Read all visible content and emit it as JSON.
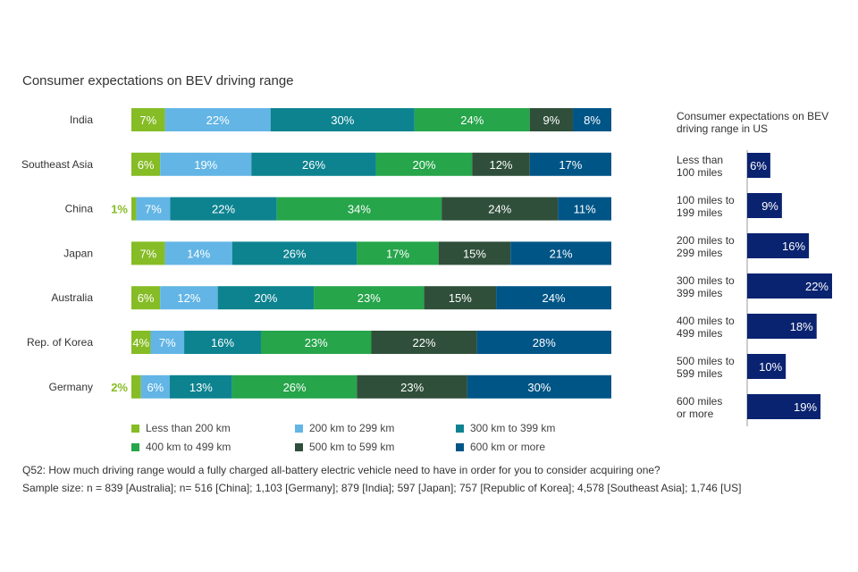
{
  "chart_data": [
    {
      "type": "bar",
      "orientation": "horizontal",
      "stacked": true,
      "title": "Consumer expectations on BEV driving range",
      "categories": [
        "India",
        "Southeast Asia",
        "China",
        "Japan",
        "Australia",
        "Rep. of Korea",
        "Germany"
      ],
      "series": [
        {
          "name": "Less than 200 km",
          "values": [
            7,
            6,
            1,
            7,
            6,
            4,
            2
          ]
        },
        {
          "name": "200 km to 299 km",
          "values": [
            22,
            19,
            7,
            14,
            12,
            7,
            6
          ]
        },
        {
          "name": "300 km to 399 km",
          "values": [
            30,
            26,
            22,
            26,
            20,
            16,
            13
          ]
        },
        {
          "name": "400 km to 499 km",
          "values": [
            24,
            20,
            34,
            17,
            23,
            23,
            26
          ]
        },
        {
          "name": "500 km to 599 km",
          "values": [
            9,
            12,
            24,
            15,
            15,
            22,
            23
          ]
        },
        {
          "name": "600 km or more",
          "values": [
            8,
            17,
            11,
            21,
            24,
            28,
            30
          ]
        }
      ],
      "colors": [
        "#86bc25",
        "#62b5e5",
        "#0d8390",
        "#26a54a",
        "#2f4f3a",
        "#005587"
      ],
      "value_suffix": "%",
      "legend_position": "bottom"
    },
    {
      "type": "bar",
      "orientation": "horizontal",
      "title": "Consumer expectations on BEV driving range in US",
      "categories": [
        "Less than 100 miles",
        "100 miles to 199 miles",
        "200 miles to 299 miles",
        "300 miles to 399 miles",
        "400 miles to 499 miles",
        "500 miles to 599 miles",
        "600 miles or more"
      ],
      "category_lines": [
        [
          "Less than",
          "100 miles"
        ],
        [
          "100 miles to",
          "199 miles"
        ],
        [
          "200 miles to",
          "299 miles"
        ],
        [
          "300 miles to",
          "399 miles"
        ],
        [
          "400 miles to",
          "499 miles"
        ],
        [
          "500 miles to",
          "599 miles"
        ],
        [
          "600 miles",
          "or more"
        ]
      ],
      "values": [
        6,
        9,
        16,
        22,
        18,
        10,
        19
      ],
      "color": "#0a2370",
      "value_suffix": "%"
    }
  ],
  "footnote": {
    "question": "Q52: How much driving range would a fully charged all-battery electric vehicle need to have in order for you to consider acquiring one?",
    "sample": "Sample size: n = 839 [Australia]; n= 516 [China]; 1,103 [Germany]; 879 [India]; 597 [Japan]; 757 [Republic of Korea]; 4,578 [Southeast Asia]; 1,746 [US]"
  }
}
